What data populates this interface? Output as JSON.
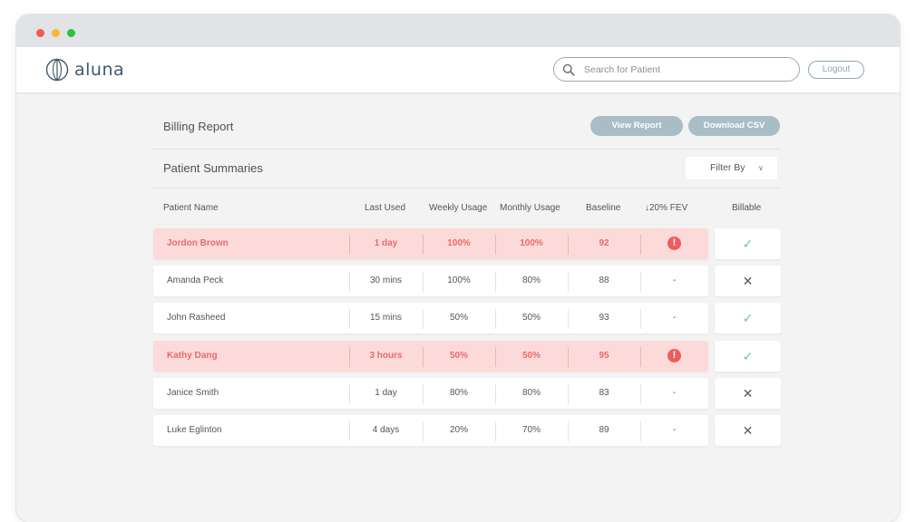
{
  "app": {
    "name": "aluna"
  },
  "search": {
    "placeholder": "Search for Patient"
  },
  "header": {
    "logout_label": "Logout"
  },
  "billing": {
    "title": "Billing Report",
    "view_report_label": "View Report",
    "download_csv_label": "Download CSV"
  },
  "summaries": {
    "title": "Patient Summaries",
    "filter_label": "Filter By",
    "columns": [
      "Patient Name",
      "Last Used",
      "Weekly Usage",
      "Monthly Usage",
      "Baseline",
      "↓20% FEV",
      "Billable"
    ],
    "rows": [
      {
        "name": "Jordon Brown",
        "last_used": "1 day",
        "weekly": "100%",
        "monthly": "100%",
        "baseline": "92",
        "fev": "!",
        "billable": "✓",
        "alert": true
      },
      {
        "name": "Amanda Peck",
        "last_used": "30 mins",
        "weekly": "100%",
        "monthly": "80%",
        "baseline": "88",
        "fev": "-",
        "billable": "✕",
        "alert": false
      },
      {
        "name": "John Rasheed",
        "last_used": "15 mins",
        "weekly": "50%",
        "monthly": "50%",
        "baseline": "93",
        "fev": "-",
        "billable": "✓",
        "alert": false
      },
      {
        "name": "Kathy Dang",
        "last_used": "3 hours",
        "weekly": "50%",
        "monthly": "50%",
        "baseline": "95",
        "fev": "!",
        "billable": "✓",
        "alert": true
      },
      {
        "name": "Janice Smith",
        "last_used": "1 day",
        "weekly": "80%",
        "monthly": "80%",
        "baseline": "83",
        "fev": "-",
        "billable": "✕",
        "alert": false
      },
      {
        "name": "Luke Eglinton",
        "last_used": "4 days",
        "weekly": "20%",
        "monthly": "70%",
        "baseline": "89",
        "fev": "-",
        "billable": "✕",
        "alert": false
      }
    ]
  },
  "colors": {
    "accent": "#a9bdc6",
    "alert_bg": "#fcdada",
    "alert_text": "#ea6a6a",
    "check": "#5ccc88"
  }
}
